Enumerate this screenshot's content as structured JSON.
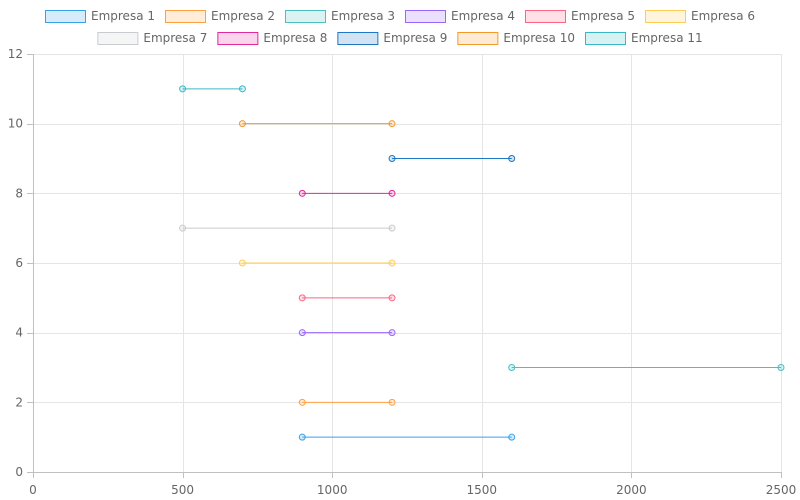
{
  "chart_data": {
    "type": "line",
    "title": "",
    "xlabel": "",
    "ylabel": "",
    "xlim": [
      0,
      2500
    ],
    "ylim": [
      0,
      12
    ],
    "xticks": [
      0,
      500,
      1000,
      1500,
      2000,
      2500
    ],
    "yticks": [
      0,
      2,
      4,
      6,
      8,
      10,
      12
    ],
    "grid": true,
    "legend_position": "top",
    "series": [
      {
        "name": "Empresa 1",
        "color": "#36a2eb",
        "points": [
          [
            900,
            1
          ],
          [
            1600,
            1
          ]
        ]
      },
      {
        "name": "Empresa 2",
        "color": "#ff9f40",
        "points": [
          [
            900,
            2
          ],
          [
            1200,
            2
          ]
        ]
      },
      {
        "name": "Empresa 3",
        "color": "#4bc0c0",
        "points": [
          [
            1600,
            3
          ],
          [
            2500,
            3
          ]
        ]
      },
      {
        "name": "Empresa 4",
        "color": "#9966ff",
        "points": [
          [
            900,
            4
          ],
          [
            1200,
            4
          ]
        ]
      },
      {
        "name": "Empresa 5",
        "color": "#ff6384",
        "points": [
          [
            900,
            5
          ],
          [
            1200,
            5
          ]
        ]
      },
      {
        "name": "Empresa 6",
        "color": "#ffcd56",
        "points": [
          [
            700,
            6
          ],
          [
            1200,
            6
          ]
        ]
      },
      {
        "name": "Empresa 7",
        "color": "#c9cbcf",
        "points": [
          [
            500,
            7
          ],
          [
            1200,
            7
          ]
        ]
      },
      {
        "name": "Empresa 8",
        "color": "#e02a9a",
        "points": [
          [
            900,
            8
          ],
          [
            1200,
            8
          ]
        ]
      },
      {
        "name": "Empresa 9",
        "color": "#1f78c4",
        "points": [
          [
            1200,
            9
          ],
          [
            1600,
            9
          ]
        ]
      },
      {
        "name": "Empresa 10",
        "color": "#f39a2b",
        "points": [
          [
            700,
            10
          ],
          [
            1200,
            10
          ]
        ]
      },
      {
        "name": "Empresa 11",
        "color": "#3ab7c4",
        "points": [
          [
            500,
            11
          ],
          [
            700,
            11
          ]
        ]
      }
    ]
  }
}
